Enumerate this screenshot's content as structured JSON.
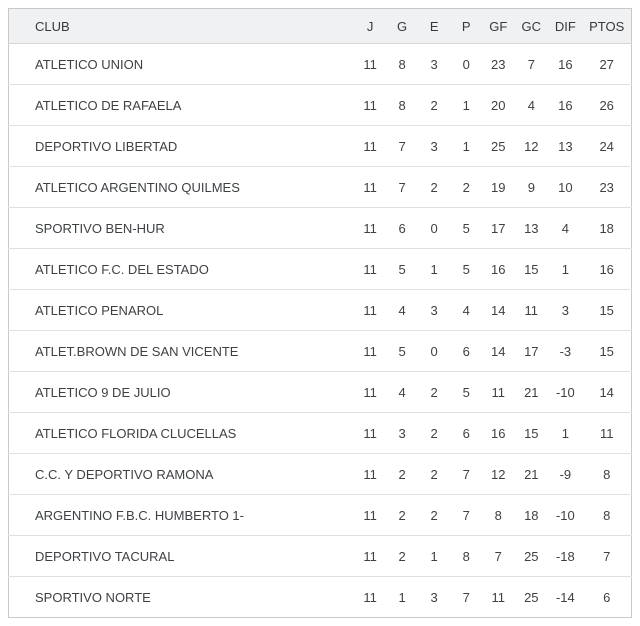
{
  "table": {
    "columns": [
      {
        "key": "club",
        "label": "CLUB"
      },
      {
        "key": "j",
        "label": "J"
      },
      {
        "key": "g",
        "label": "G"
      },
      {
        "key": "e",
        "label": "E"
      },
      {
        "key": "p",
        "label": "P"
      },
      {
        "key": "gf",
        "label": "GF"
      },
      {
        "key": "gc",
        "label": "GC"
      },
      {
        "key": "dif",
        "label": "DIF"
      },
      {
        "key": "ptos",
        "label": "PTOS"
      }
    ],
    "rows": [
      {
        "club": "ATLETICO UNION",
        "j": 11,
        "g": 8,
        "e": 3,
        "p": 0,
        "gf": 23,
        "gc": 7,
        "dif": 16,
        "ptos": 27
      },
      {
        "club": "ATLETICO DE RAFAELA",
        "j": 11,
        "g": 8,
        "e": 2,
        "p": 1,
        "gf": 20,
        "gc": 4,
        "dif": 16,
        "ptos": 26
      },
      {
        "club": "DEPORTIVO LIBERTAD",
        "j": 11,
        "g": 7,
        "e": 3,
        "p": 1,
        "gf": 25,
        "gc": 12,
        "dif": 13,
        "ptos": 24
      },
      {
        "club": "ATLETICO ARGENTINO QUILMES",
        "j": 11,
        "g": 7,
        "e": 2,
        "p": 2,
        "gf": 19,
        "gc": 9,
        "dif": 10,
        "ptos": 23
      },
      {
        "club": "SPORTIVO BEN-HUR",
        "j": 11,
        "g": 6,
        "e": 0,
        "p": 5,
        "gf": 17,
        "gc": 13,
        "dif": 4,
        "ptos": 18
      },
      {
        "club": "ATLETICO F.C. DEL ESTADO",
        "j": 11,
        "g": 5,
        "e": 1,
        "p": 5,
        "gf": 16,
        "gc": 15,
        "dif": 1,
        "ptos": 16
      },
      {
        "club": "ATLETICO PENAROL",
        "j": 11,
        "g": 4,
        "e": 3,
        "p": 4,
        "gf": 14,
        "gc": 11,
        "dif": 3,
        "ptos": 15
      },
      {
        "club": "ATLET.BROWN DE SAN VICENTE",
        "j": 11,
        "g": 5,
        "e": 0,
        "p": 6,
        "gf": 14,
        "gc": 17,
        "dif": -3,
        "ptos": 15
      },
      {
        "club": "ATLETICO 9 DE JULIO",
        "j": 11,
        "g": 4,
        "e": 2,
        "p": 5,
        "gf": 11,
        "gc": 21,
        "dif": -10,
        "ptos": 14
      },
      {
        "club": "ATLETICO FLORIDA CLUCELLAS",
        "j": 11,
        "g": 3,
        "e": 2,
        "p": 6,
        "gf": 16,
        "gc": 15,
        "dif": 1,
        "ptos": 11
      },
      {
        "club": "C.C. Y DEPORTIVO RAMONA",
        "j": 11,
        "g": 2,
        "e": 2,
        "p": 7,
        "gf": 12,
        "gc": 21,
        "dif": -9,
        "ptos": 8
      },
      {
        "club": "ARGENTINO F.B.C. HUMBERTO 1-",
        "j": 11,
        "g": 2,
        "e": 2,
        "p": 7,
        "gf": 8,
        "gc": 18,
        "dif": -10,
        "ptos": 8
      },
      {
        "club": "DEPORTIVO TACURAL",
        "j": 11,
        "g": 2,
        "e": 1,
        "p": 8,
        "gf": 7,
        "gc": 25,
        "dif": -18,
        "ptos": 7
      },
      {
        "club": "SPORTIVO NORTE",
        "j": 11,
        "g": 1,
        "e": 3,
        "p": 7,
        "gf": 11,
        "gc": 25,
        "dif": -14,
        "ptos": 6
      }
    ]
  },
  "colors": {
    "header_background": "#f0f1f2",
    "outer_border": "#c9c9c9",
    "row_separator": "#e0e0e0",
    "header_text": "#36393d",
    "cell_text": "#3e4144",
    "page_background": "#ffffff"
  }
}
